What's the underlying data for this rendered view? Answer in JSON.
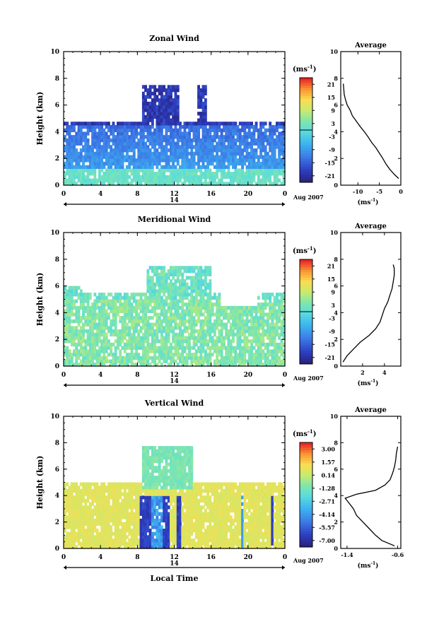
{
  "chart_data": [
    {
      "type": "heatmap",
      "title": "Zonal Wind",
      "ylabel": "Height (km)",
      "ylim": [
        0,
        10
      ],
      "y_ticks": [
        "0",
        "2",
        "4",
        "6",
        "8",
        "10"
      ],
      "x_ticks": [
        "0",
        "4",
        "8",
        "12",
        "16",
        "20",
        "0"
      ],
      "xlim": [
        0,
        24
      ],
      "date_label": "14",
      "date_suffix": "Aug 2007",
      "colorbar_unit": "(ms",
      "colorbar_unit_exp": "-1",
      "colorbar_ticks": [
        "21",
        "15",
        "9",
        "3",
        "-3",
        "-9",
        "-15",
        "-21"
      ],
      "vmin": -24,
      "vmax": 24,
      "average_title": "Average",
      "average_xlabel": "(ms",
      "average_xlabel_exp": "-1",
      "average_x_ticks": [
        "-10",
        "-5",
        "0"
      ],
      "average_xlim": [
        -14,
        0
      ],
      "average_profile": {
        "height": [
          0.5,
          0.8,
          1.2,
          1.6,
          2.0,
          2.4,
          2.8,
          3.2,
          3.6,
          4.0,
          4.4,
          4.8,
          5.2,
          5.6,
          6.0,
          6.4,
          6.8,
          7.2,
          7.6
        ],
        "value": [
          -0.5,
          -1.5,
          -2.6,
          -3.5,
          -4.2,
          -5.0,
          -5.8,
          -6.8,
          -7.6,
          -8.5,
          -9.5,
          -10.4,
          -11.3,
          -11.8,
          -12.5,
          -12.9,
          -13.2,
          -13.3,
          -13.4
        ]
      }
    },
    {
      "type": "heatmap",
      "title": "Meridional Wind",
      "ylabel": "Height (km)",
      "ylim": [
        0,
        10
      ],
      "y_ticks": [
        "0",
        "2",
        "4",
        "6",
        "8",
        "10"
      ],
      "x_ticks": [
        "0",
        "4",
        "8",
        "12",
        "16",
        "20",
        "0"
      ],
      "xlim": [
        0,
        24
      ],
      "date_label": "14",
      "date_suffix": "Aug 2007",
      "colorbar_unit": "(ms",
      "colorbar_unit_exp": "-1",
      "colorbar_ticks": [
        "21",
        "15",
        "9",
        "3",
        "-3",
        "-9",
        "-15",
        "-21"
      ],
      "vmin": -24,
      "vmax": 24,
      "average_title": "Average",
      "average_xlabel": "(ms",
      "average_xlabel_exp": "-1",
      "average_x_ticks": [
        "2",
        "4"
      ],
      "average_xlim": [
        0,
        5.5
      ],
      "average_profile": {
        "height": [
          0.3,
          0.8,
          1.3,
          1.8,
          2.3,
          2.8,
          3.3,
          3.8,
          4.3,
          4.8,
          5.3,
          5.8,
          6.3,
          6.8,
          7.3,
          7.6
        ],
        "value": [
          0.2,
          0.6,
          1.2,
          1.8,
          2.6,
          3.2,
          3.6,
          3.8,
          4.0,
          4.3,
          4.5,
          4.7,
          4.8,
          4.9,
          4.9,
          4.8
        ]
      }
    },
    {
      "type": "heatmap",
      "title": "Vertical Wind",
      "ylabel": "Height (km)",
      "xlabel": "Local Time",
      "ylim": [
        0,
        10
      ],
      "y_ticks": [
        "0",
        "2",
        "4",
        "6",
        "8",
        "10"
      ],
      "x_ticks": [
        "0",
        "4",
        "8",
        "12",
        "16",
        "20",
        "0"
      ],
      "xlim": [
        0,
        24
      ],
      "date_label": "14",
      "date_suffix": "Aug 2007",
      "colorbar_unit": "(ms",
      "colorbar_unit_exp": "-1",
      "colorbar_ticks": [
        "3.00",
        "1.57",
        "0.14",
        "-1.28",
        "-2.71",
        "-4.14",
        "-5.57",
        "-7.00"
      ],
      "vmin": -8,
      "vmax": 4,
      "average_title": "Average",
      "average_xlabel": "(ms",
      "average_xlabel_exp": "-1",
      "average_x_ticks": [
        "-1.4",
        "-0.6"
      ],
      "average_xlim": [
        -1.5,
        -0.55
      ],
      "average_profile": {
        "height": [
          0.2,
          0.6,
          1.0,
          1.5,
          2.0,
          2.5,
          3.0,
          3.5,
          3.8,
          4.1,
          4.4,
          4.8,
          5.2,
          5.7,
          6.2,
          6.7,
          7.2,
          7.7
        ],
        "value": [
          -0.65,
          -0.85,
          -0.95,
          -1.05,
          -1.15,
          -1.25,
          -1.3,
          -1.38,
          -1.43,
          -1.25,
          -0.95,
          -0.8,
          -0.72,
          -0.68,
          -0.65,
          -0.63,
          -0.62,
          -0.6
        ]
      }
    }
  ]
}
